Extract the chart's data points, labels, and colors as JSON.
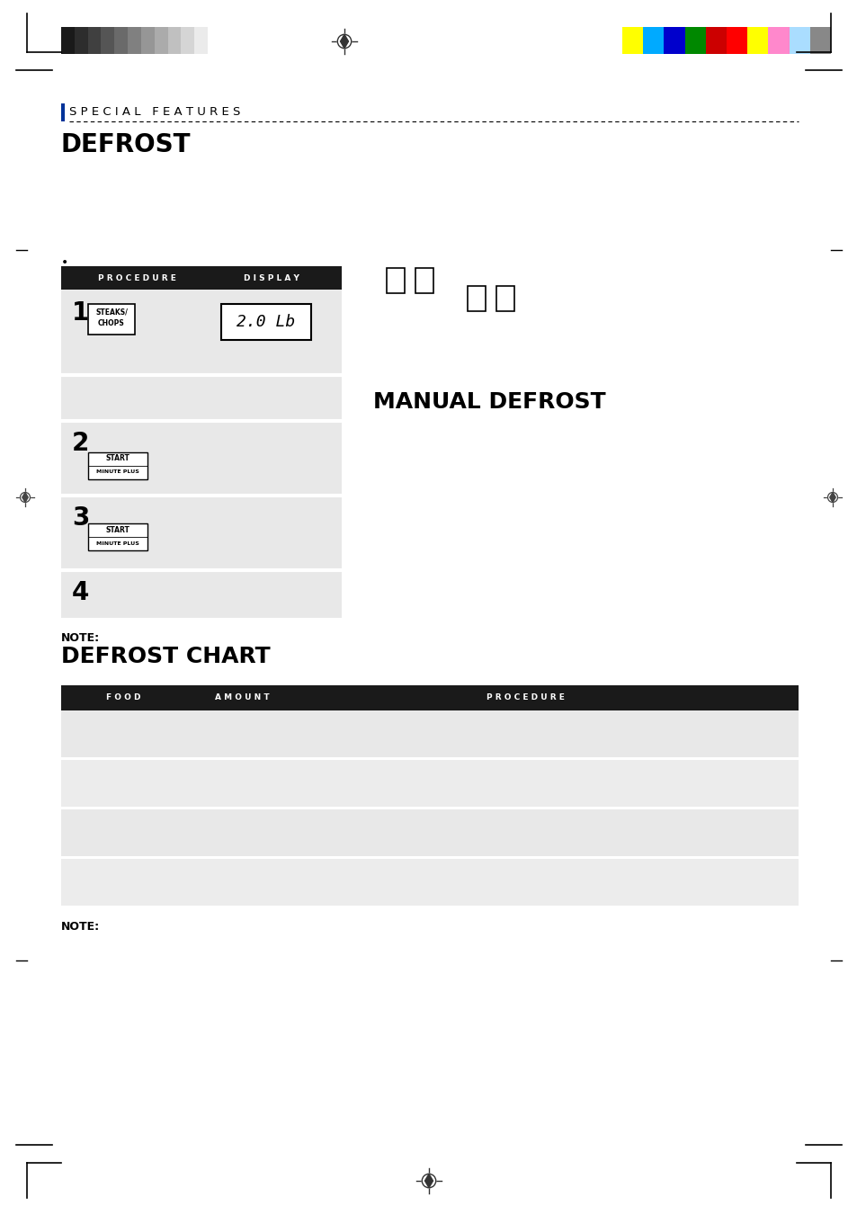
{
  "page_bg": "#ffffff",
  "header_bar_colors_left": [
    "#1a1a1a",
    "#2d2d2d",
    "#404040",
    "#555555",
    "#6a6a6a",
    "#808080",
    "#969696",
    "#ababab",
    "#c0c0c0",
    "#d5d5d5",
    "#ebebeb",
    "#ffffff"
  ],
  "header_bar_colors_right": [
    "#ffff00",
    "#00aaff",
    "#0000cc",
    "#008800",
    "#cc0000",
    "#ff0000",
    "#ffff00",
    "#ff88cc",
    "#aaddff",
    "#888888"
  ],
  "section_label": "S P E C I A L   F E A T U R E S",
  "main_title": "DEFROST",
  "proc_header_1": "P R O C E D U R E",
  "proc_header_2": "D I S P L A Y",
  "manual_defrost_title": "MANUAL DEFROST",
  "note_label": "NOTE:",
  "defrost_chart_title": "DEFROST CHART",
  "chart_header_food": "F O O D",
  "chart_header_amount": "A M O U N T",
  "chart_header_proc": "P R O C E D U R E",
  "chart_rows": 4,
  "table_bg_dark": "#e0e0e0",
  "table_bg_light": "#ececec",
  "table_header_bg": "#1a1a1a",
  "table_header_fg": "#ffffff",
  "crosshair_color": "#333333",
  "blue_accent": "#003399"
}
